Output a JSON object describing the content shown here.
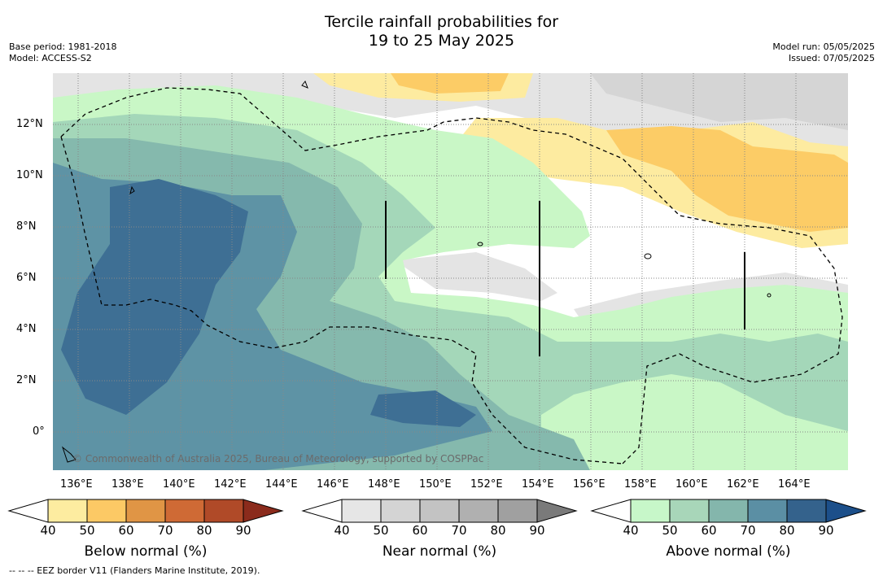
{
  "title_line1": "Tercile rainfall probabilities for",
  "title_line2": "19 to 25 May 2025",
  "meta_left": {
    "base_period": "Base period: 1981-2018",
    "model": "Model: ACCESS-S2"
  },
  "meta_right": {
    "model_run": "Model run: 05/05/2025",
    "issued": "Issued: 07/05/2025"
  },
  "map": {
    "lon_labels": [
      "136°E",
      "138°E",
      "140°E",
      "142°E",
      "144°E",
      "146°E",
      "148°E",
      "150°E",
      "152°E",
      "154°E",
      "156°E",
      "158°E",
      "160°E",
      "162°E",
      "164°E"
    ],
    "lat_labels": [
      "12°N",
      "10°N",
      "8°N",
      "6°N",
      "4°N",
      "2°N",
      "0°"
    ],
    "copyright": "© Commonwealth of Australia 2025, Bureau of Meteorology, supported by COSPPac",
    "colors": {
      "above_40": "#c9f7c6",
      "above_50": "#a4d7b9",
      "above_60": "#85b9ad",
      "above_70": "#5e93a5",
      "above_80": "#3e6f94",
      "near_40": "#e6e6e6",
      "near_50": "#d6d6d6",
      "below_40": "#fdeba0",
      "below_50": "#fccc66",
      "white": "#ffffff"
    }
  },
  "colorbars": [
    {
      "name": "below-normal",
      "label": "Below normal (%)",
      "ticks": [
        "40",
        "50",
        "60",
        "70",
        "80",
        "90"
      ],
      "colors": [
        "#fdeca0",
        "#fcc965",
        "#e09545",
        "#cf6a35",
        "#b04a28"
      ],
      "extend_color": "#8b2b1c"
    },
    {
      "name": "near-normal",
      "label": "Near normal (%)",
      "ticks": [
        "40",
        "50",
        "60",
        "70",
        "80",
        "90"
      ],
      "colors": [
        "#e6e6e6",
        "#d4d4d4",
        "#c3c3c3",
        "#b0b0b0",
        "#a0a0a0"
      ],
      "extend_color": "#7a7a7a"
    },
    {
      "name": "above-normal",
      "label": "Above normal (%)",
      "ticks": [
        "40",
        "50",
        "60",
        "70",
        "80",
        "90"
      ],
      "colors": [
        "#c7f7c9",
        "#a8d6b9",
        "#84b6ac",
        "#5b8fa4",
        "#34628c"
      ],
      "extend_color": "#1c4f8a"
    }
  ],
  "footnote": "--  --  -- EEZ border V11 (Flanders Marine Institute, 2019)."
}
